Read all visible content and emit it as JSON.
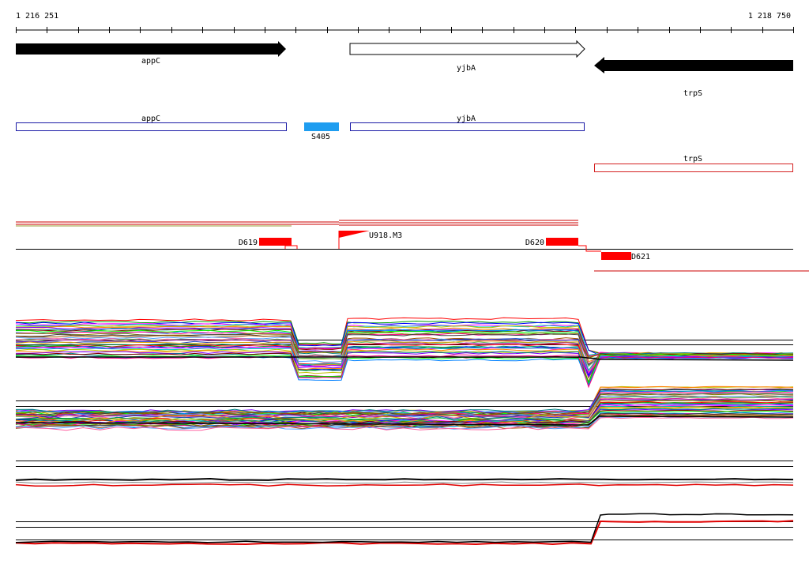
{
  "ruler": {
    "start_label": "1 216 251",
    "end_label": "1 218 750",
    "start": 1216251,
    "end": 1218750
  },
  "genes": [
    {
      "name": "appC",
      "strand": "+",
      "filled": true
    },
    {
      "name": "yjbA",
      "strand": "+",
      "filled": false
    },
    {
      "name": "trpS",
      "strand": "-",
      "filled": true
    }
  ],
  "features": {
    "appC_box": "appC",
    "s405_label": "S405",
    "yjbA_box": "yjbA",
    "trpS_box": "trpS",
    "s405_color": "#1e9df0",
    "plus_box_color": "#1a1aa6",
    "minus_box_color": "#d42020"
  },
  "markers": {
    "d619": "D619",
    "d620": "D620",
    "d621": "D621",
    "u918": "U918.M3",
    "color": "#ff0000"
  }
}
